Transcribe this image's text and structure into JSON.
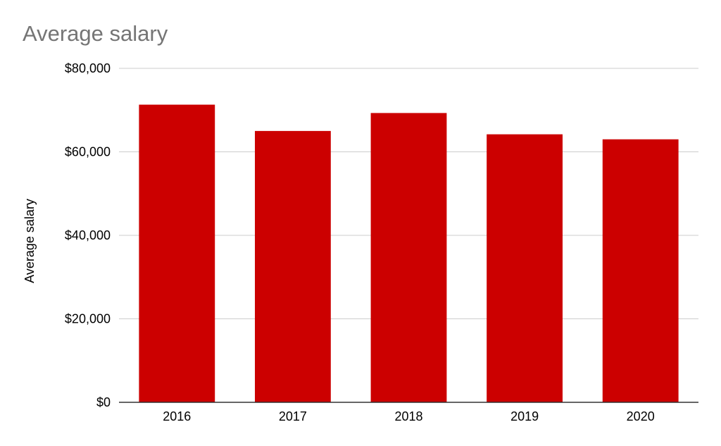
{
  "chart_data": {
    "type": "bar",
    "title": "Average salary",
    "xlabel": "",
    "ylabel": "Average salary",
    "categories": [
      "2016",
      "2017",
      "2018",
      "2019",
      "2020"
    ],
    "values": [
      71300,
      65000,
      69300,
      64200,
      63000
    ],
    "ylim": [
      0,
      80000
    ],
    "yticks": [
      0,
      20000,
      40000,
      60000,
      80000
    ],
    "ytick_labels": [
      "$0",
      "$20,000",
      "$40,000",
      "$60,000",
      "$80,000"
    ],
    "grid": true,
    "legend": "none",
    "bar_color": "#cc0000",
    "title_color": "#757575",
    "grid_color": "#cccccc"
  }
}
